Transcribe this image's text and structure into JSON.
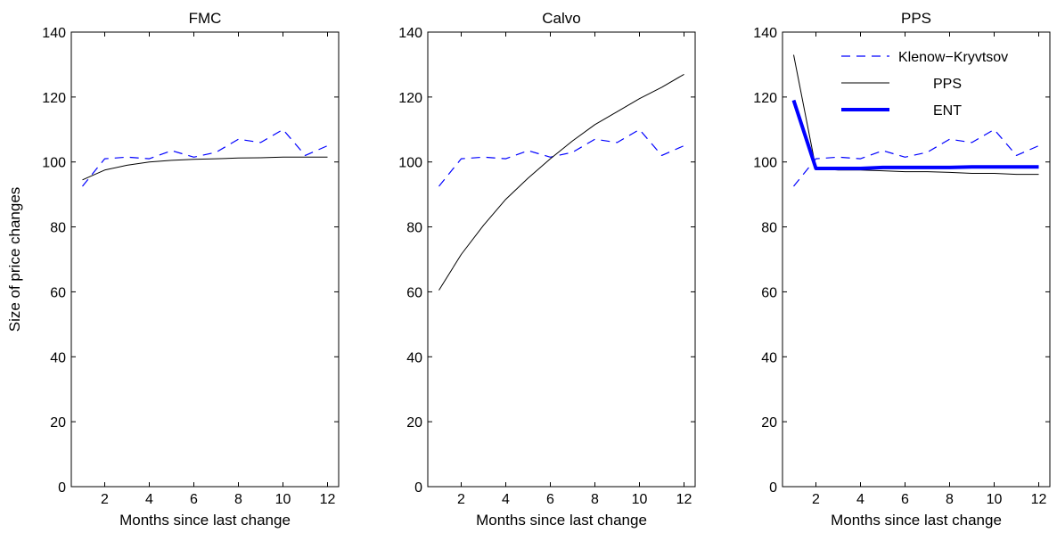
{
  "figure": {
    "ylabel": "Size of price changes"
  },
  "chart_data": [
    {
      "type": "line",
      "title": "FMC",
      "xlabel": "Months since last change",
      "ylabel": "Size of price changes",
      "xlim": [
        0.5,
        12.5
      ],
      "ylim": [
        0,
        140
      ],
      "xticks": [
        2,
        4,
        6,
        8,
        10,
        12
      ],
      "yticks": [
        0,
        20,
        40,
        60,
        80,
        100,
        120,
        140
      ],
      "grid": false,
      "legend": null,
      "x": [
        1,
        2,
        3,
        4,
        5,
        6,
        7,
        8,
        9,
        10,
        11,
        12
      ],
      "series": [
        {
          "name": "Klenow−Kryvtsov",
          "color": "#0000ff",
          "style": "dashed",
          "width": "thin",
          "values": [
            92.5,
            101,
            101.5,
            101,
            103.5,
            101.5,
            103,
            107,
            106,
            110,
            102,
            105
          ]
        },
        {
          "name": "FMC",
          "color": "#000000",
          "style": "solid",
          "width": "thin",
          "values": [
            94.5,
            97.5,
            99,
            100,
            100.5,
            100.8,
            101,
            101.2,
            101.3,
            101.5,
            101.5,
            101.5
          ]
        }
      ]
    },
    {
      "type": "line",
      "title": "Calvo",
      "xlabel": "Months since last change",
      "ylabel": "",
      "xlim": [
        0.5,
        12.5
      ],
      "ylim": [
        0,
        140
      ],
      "xticks": [
        2,
        4,
        6,
        8,
        10,
        12
      ],
      "yticks": [
        0,
        20,
        40,
        60,
        80,
        100,
        120,
        140
      ],
      "grid": false,
      "legend": null,
      "x": [
        1,
        2,
        3,
        4,
        5,
        6,
        7,
        8,
        9,
        10,
        11,
        12
      ],
      "series": [
        {
          "name": "Klenow−Kryvtsov",
          "color": "#0000ff",
          "style": "dashed",
          "width": "thin",
          "values": [
            92.5,
            101,
            101.5,
            101,
            103.5,
            101.5,
            103,
            107,
            106,
            110,
            102,
            105
          ]
        },
        {
          "name": "Calvo",
          "color": "#000000",
          "style": "solid",
          "width": "thin",
          "values": [
            60.5,
            71.5,
            80.5,
            88.5,
            95,
            101,
            106.5,
            111.5,
            115.5,
            119.5,
            123,
            127
          ]
        }
      ]
    },
    {
      "type": "line",
      "title": "PPS",
      "xlabel": "Months since last change",
      "ylabel": "",
      "xlim": [
        0.5,
        12.5
      ],
      "ylim": [
        0,
        140
      ],
      "xticks": [
        2,
        4,
        6,
        8,
        10,
        12
      ],
      "yticks": [
        0,
        20,
        40,
        60,
        80,
        100,
        120,
        140
      ],
      "grid": false,
      "legend": "top-right",
      "x": [
        1,
        2,
        3,
        4,
        5,
        6,
        7,
        8,
        9,
        10,
        11,
        12
      ],
      "series": [
        {
          "name": "Klenow−Kryvtsov",
          "color": "#0000ff",
          "style": "dashed",
          "width": "thin",
          "values": [
            92.5,
            101,
            101.5,
            101,
            103.5,
            101.5,
            103,
            107,
            106,
            110,
            102,
            105
          ]
        },
        {
          "name": "PPS",
          "color": "#000000",
          "style": "solid",
          "width": "thin",
          "values": [
            133,
            98,
            97.5,
            97.5,
            97.3,
            97,
            97,
            96.8,
            96.5,
            96.5,
            96.2,
            96.2
          ]
        },
        {
          "name": "ENT",
          "color": "#0000ff",
          "style": "solid",
          "width": "thick",
          "values": [
            119,
            98,
            98,
            98,
            98.3,
            98.3,
            98.3,
            98.3,
            98.5,
            98.5,
            98.5,
            98.5
          ]
        }
      ]
    }
  ]
}
